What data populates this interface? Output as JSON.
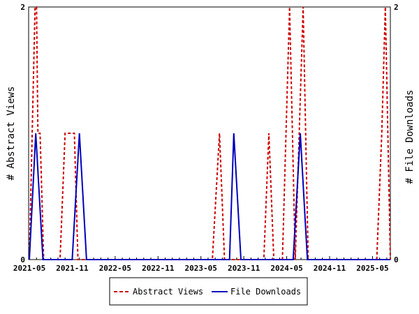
{
  "chart_data": {
    "type": "line",
    "ylabel_left": "# Abstract Views",
    "ylabel_right": "# File Downloads",
    "x_tick_labels": [
      "2021-05",
      "2021-11",
      "2022-05",
      "2022-11",
      "2023-05",
      "2023-11",
      "2024-05",
      "2024-11",
      "2025-05"
    ],
    "y_left_ticks": [
      "0",
      "2"
    ],
    "y_right_ticks": [
      "0",
      "2"
    ],
    "ylim": [
      0,
      2
    ],
    "x_range_months": [
      -0.1,
      50.5
    ],
    "grid": false,
    "legend_position": "bottom",
    "series": [
      {
        "name": "Abstract Views",
        "axis": "left",
        "color": "#cc0000",
        "style": "dashed",
        "points": [
          [
            0.0,
            0
          ],
          [
            0.4,
            1
          ],
          [
            0.8,
            2
          ],
          [
            1.0,
            2
          ],
          [
            1.2,
            1
          ],
          [
            1.5,
            1
          ],
          [
            2.0,
            0
          ],
          [
            4.3,
            0
          ],
          [
            5.0,
            1
          ],
          [
            6.3,
            1
          ],
          [
            6.8,
            0
          ],
          [
            25.6,
            0
          ],
          [
            26.6,
            1
          ],
          [
            27.3,
            0
          ],
          [
            32.8,
            0
          ],
          [
            33.5,
            1
          ],
          [
            34.2,
            0
          ],
          [
            35.4,
            0
          ],
          [
            36.4,
            2
          ],
          [
            37.2,
            0
          ],
          [
            38.3,
            2
          ],
          [
            39.0,
            0
          ],
          [
            48.6,
            0
          ],
          [
            49.3,
            1
          ],
          [
            49.8,
            2
          ],
          [
            50.5,
            0
          ]
        ]
      },
      {
        "name": "File Downloads",
        "axis": "left",
        "color": "#0000bb",
        "style": "solid",
        "points": [
          [
            0.0,
            0
          ],
          [
            0.9,
            1
          ],
          [
            1.9,
            0
          ],
          [
            6.0,
            0
          ],
          [
            7.0,
            1
          ],
          [
            8.0,
            0
          ],
          [
            28.0,
            0
          ],
          [
            28.6,
            1
          ],
          [
            29.6,
            0
          ],
          [
            36.9,
            0
          ],
          [
            37.9,
            1
          ],
          [
            38.9,
            0
          ],
          [
            50.5,
            0
          ]
        ]
      }
    ]
  }
}
